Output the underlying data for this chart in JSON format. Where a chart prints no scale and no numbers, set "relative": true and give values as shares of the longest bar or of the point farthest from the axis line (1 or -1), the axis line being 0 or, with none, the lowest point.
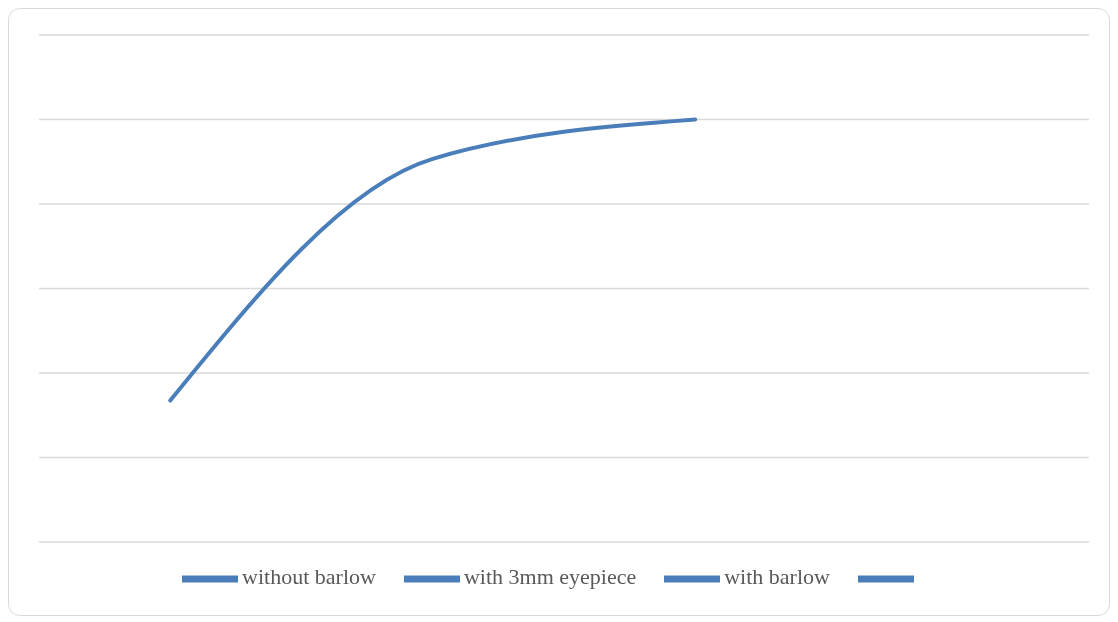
{
  "chart_data": {
    "type": "line",
    "relative": true,
    "categories": [
      null,
      null,
      null,
      null
    ],
    "grid": "y",
    "legend": "bottom",
    "marker": "none",
    "line_style": "solid",
    "series": [
      {
        "name": "without barlow",
        "color": "#4a7ebb",
        "values": [
          0.335,
          0.907,
          1,
          null
        ]
      },
      {
        "name": "with 3mm eyepiece",
        "color": "#4a7ebb",
        "values": [
          null,
          null,
          null,
          null
        ]
      },
      {
        "name": "with barlow",
        "color": "#4a7ebb",
        "values": [
          null,
          null,
          null,
          null
        ]
      },
      {
        "color": "#4a7ebb",
        "values": [
          null,
          null,
          null,
          null
        ]
      }
    ]
  }
}
